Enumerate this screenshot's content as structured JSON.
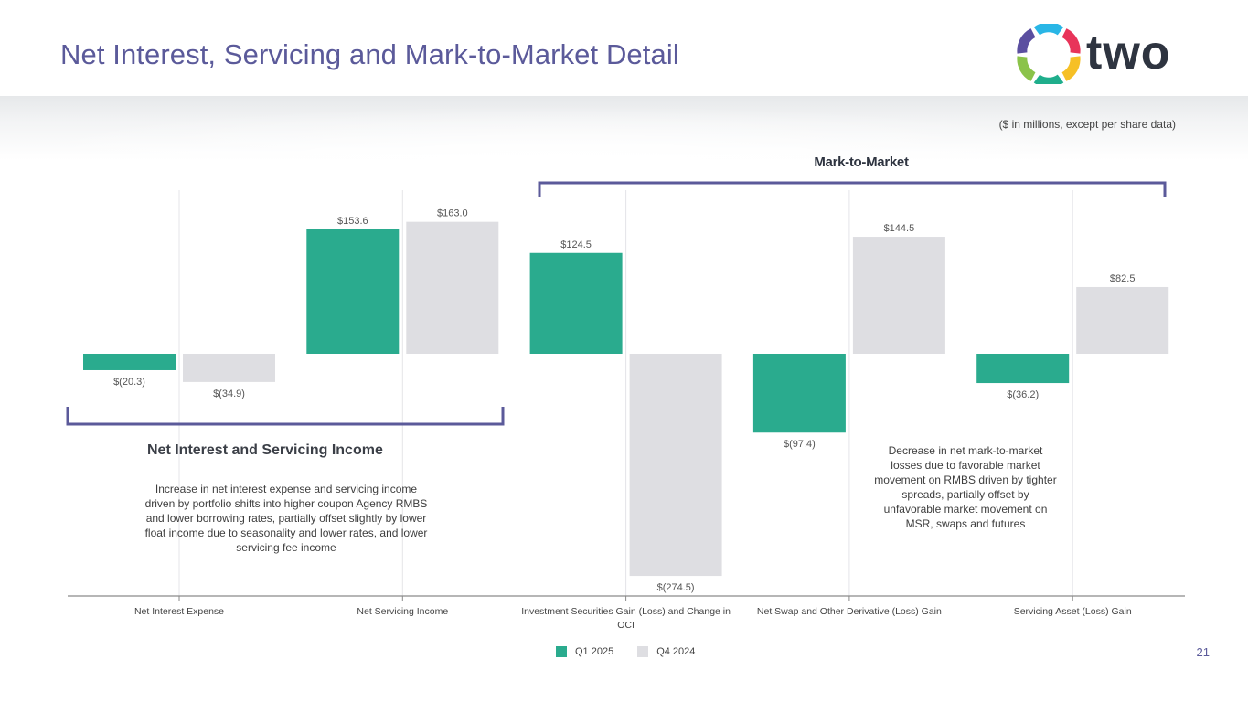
{
  "header": {
    "title": "Net Interest, Servicing and Mark-to-Market Detail",
    "logo_text": "two",
    "units_note": "($ in millions, except per share data)"
  },
  "brackets": {
    "mark_to_market": "Mark-to-Market",
    "net_interest_servicing": "Net Interest and Servicing Income"
  },
  "annotations": {
    "net_interest_servicing": "Increase in net interest expense and servicing income driven by portfolio shifts into higher coupon Agency RMBS and lower borrowing rates, partially offset slightly by lower float income due to seasonality and lower rates, and lower servicing fee income",
    "mark_to_market": "Decrease in net mark-to-market losses due to favorable market movement on RMBS driven by tighter spreads, partially offset by unfavorable market movement on MSR, swaps and futures"
  },
  "page_number": "21",
  "colors": {
    "title": "#5b5a9a",
    "bracket": "#5b5a9a",
    "q1_2025": "#2aab8e",
    "q4_2024": "#dedee2",
    "axis": "#8a8a8a",
    "gridline": "#e4e4e8"
  },
  "chart_data": {
    "type": "bar",
    "title": "",
    "xlabel": "",
    "ylabel": "",
    "categories": [
      "Net Interest Expense",
      "Net Servicing Income",
      "Investment Securities Gain (Loss) and Change in OCI",
      "Net Swap and Other Derivative (Loss) Gain",
      "Servicing Asset (Loss) Gain"
    ],
    "series": [
      {
        "name": "Q1 2025",
        "values": [
          -20.3,
          153.6,
          124.5,
          -97.4,
          -36.2
        ],
        "labels": [
          "$(20.3)",
          "$153.6",
          "$124.5",
          "$(97.4)",
          "$(36.2)"
        ]
      },
      {
        "name": "Q4 2024",
        "values": [
          -34.9,
          163.0,
          -274.5,
          144.5,
          82.5
        ],
        "labels": [
          "$(34.9)",
          "$163.0",
          "$(274.5)",
          "$144.5",
          "$82.5"
        ]
      }
    ],
    "ylim": [
      -300,
      200
    ],
    "grid": true,
    "legend": [
      "Q1 2025",
      "Q4 2024"
    ],
    "legend_position": "bottom-center"
  }
}
